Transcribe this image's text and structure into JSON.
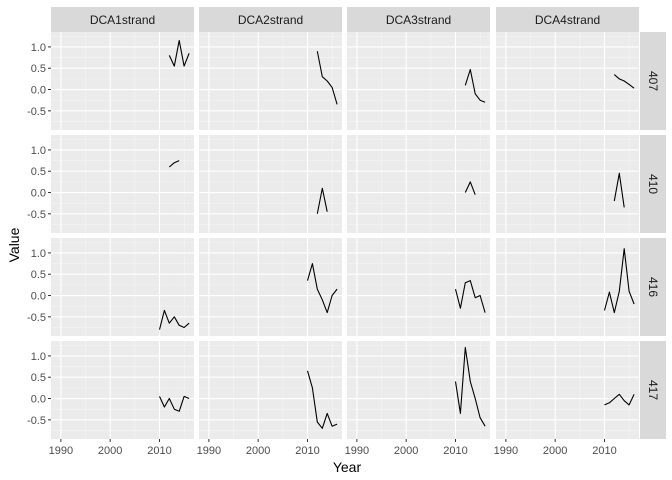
{
  "chart_data": {
    "type": "line",
    "xlabel": "Year",
    "ylabel": "Value",
    "xlim": [
      1988,
      2017
    ],
    "ylim": [
      -0.95,
      1.35
    ],
    "x_ticks": [
      1990,
      2000,
      2010
    ],
    "y_ticks": [
      -0.5,
      0.0,
      0.5,
      1.0
    ],
    "y_tick_labels": [
      "-0.5",
      "0.0",
      "0.5",
      "1.0"
    ],
    "grid": true,
    "legend": "none",
    "columns": [
      "DCA1strand",
      "DCA2strand",
      "DCA3strand",
      "DCA4strand"
    ],
    "rows": [
      "407",
      "410",
      "416",
      "417"
    ],
    "panels": [
      {
        "column": "DCA1strand",
        "row": "407",
        "x": [
          2012,
          2013,
          2014,
          2015,
          2016
        ],
        "y": [
          0.8,
          0.55,
          1.15,
          0.55,
          0.85
        ]
      },
      {
        "column": "DCA2strand",
        "row": "407",
        "x": [
          2012,
          2013,
          2014,
          2015,
          2016
        ],
        "y": [
          0.9,
          0.3,
          0.2,
          0.05,
          -0.35
        ]
      },
      {
        "column": "DCA3strand",
        "row": "407",
        "x": [
          2012,
          2013,
          2014,
          2015,
          2016
        ],
        "y": [
          0.1,
          0.47,
          -0.1,
          -0.25,
          -0.3
        ]
      },
      {
        "column": "DCA4strand",
        "row": "407",
        "x": [
          2012,
          2013,
          2014,
          2015,
          2016
        ],
        "y": [
          0.35,
          0.25,
          0.2,
          0.12,
          0.03
        ]
      },
      {
        "column": "DCA1strand",
        "row": "410",
        "x": [
          2012,
          2013,
          2014
        ],
        "y": [
          0.6,
          0.7,
          0.75
        ]
      },
      {
        "column": "DCA2strand",
        "row": "410",
        "x": [
          2012,
          2013,
          2014
        ],
        "y": [
          -0.5,
          0.1,
          -0.45
        ]
      },
      {
        "column": "DCA3strand",
        "row": "410",
        "x": [
          2012,
          2013,
          2014
        ],
        "y": [
          0.0,
          0.25,
          -0.05
        ]
      },
      {
        "column": "DCA4strand",
        "row": "410",
        "x": [
          2012,
          2013,
          2014
        ],
        "y": [
          -0.2,
          0.45,
          -0.35
        ]
      },
      {
        "column": "DCA1strand",
        "row": "416",
        "x": [
          2010,
          2011,
          2012,
          2013,
          2014,
          2015,
          2016
        ],
        "y": [
          -0.8,
          -0.35,
          -0.65,
          -0.5,
          -0.7,
          -0.75,
          -0.65
        ]
      },
      {
        "column": "DCA2strand",
        "row": "416",
        "x": [
          2010,
          2011,
          2012,
          2013,
          2014,
          2015,
          2016
        ],
        "y": [
          0.35,
          0.75,
          0.15,
          -0.1,
          -0.4,
          0.0,
          0.15
        ]
      },
      {
        "column": "DCA3strand",
        "row": "416",
        "x": [
          2010,
          2011,
          2012,
          2013,
          2014,
          2015,
          2016
        ],
        "y": [
          0.15,
          -0.3,
          0.3,
          0.35,
          -0.05,
          0.0,
          -0.4
        ]
      },
      {
        "column": "DCA4strand",
        "row": "416",
        "x": [
          2010,
          2011,
          2012,
          2013,
          2014,
          2015,
          2016
        ],
        "y": [
          -0.35,
          0.08,
          -0.4,
          0.1,
          1.1,
          0.1,
          -0.2
        ]
      },
      {
        "column": "DCA1strand",
        "row": "417",
        "x": [
          2010,
          2011,
          2012,
          2013,
          2014,
          2015,
          2016
        ],
        "y": [
          0.05,
          -0.2,
          0.0,
          -0.25,
          -0.3,
          0.05,
          0.0
        ]
      },
      {
        "column": "DCA2strand",
        "row": "417",
        "x": [
          2010,
          2011,
          2012,
          2013,
          2014,
          2015,
          2016
        ],
        "y": [
          0.65,
          0.25,
          -0.55,
          -0.7,
          -0.35,
          -0.65,
          -0.6
        ]
      },
      {
        "column": "DCA3strand",
        "row": "417",
        "x": [
          2010,
          2011,
          2012,
          2013,
          2014,
          2015,
          2016
        ],
        "y": [
          0.4,
          -0.35,
          1.2,
          0.4,
          0.0,
          -0.45,
          -0.65
        ]
      },
      {
        "column": "DCA4strand",
        "row": "417",
        "x": [
          2010,
          2011,
          2012,
          2013,
          2014,
          2015,
          2016
        ],
        "y": [
          -0.15,
          -0.1,
          0.0,
          0.1,
          -0.05,
          -0.15,
          0.1
        ]
      }
    ]
  }
}
